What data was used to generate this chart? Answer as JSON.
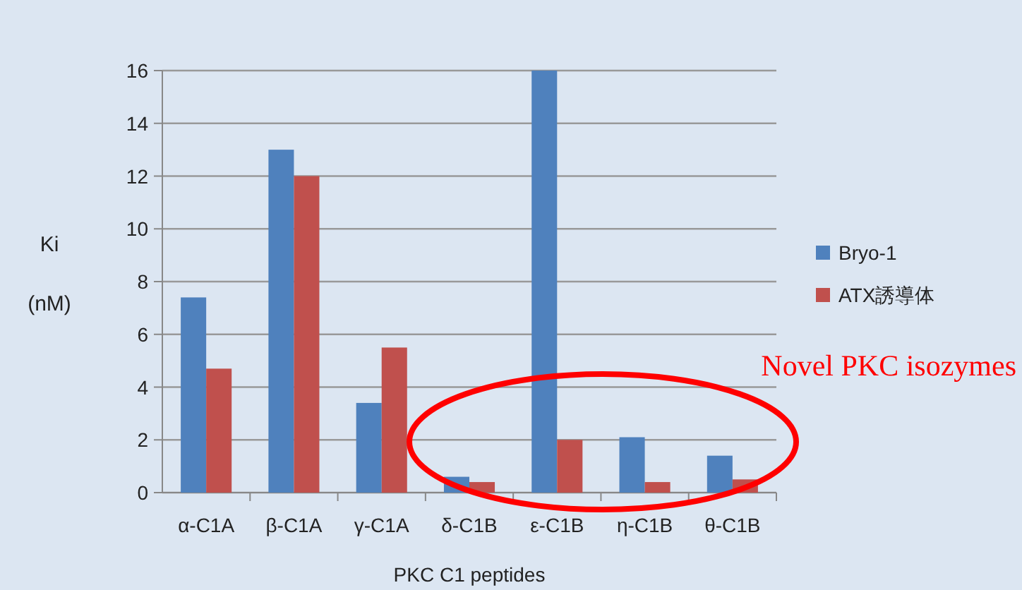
{
  "chart_data": {
    "type": "bar",
    "ylabel": "Ki\n(nM)",
    "xlabel": "PKC C1 peptides",
    "categories": [
      "α-C1A",
      "β-C1A",
      "γ-C1A",
      "δ-C1B",
      "ε-C1B",
      "η-C1B",
      "θ-C1B"
    ],
    "series": [
      {
        "name": "Bryo-1",
        "color": "#4f81bd",
        "values": [
          7.4,
          13,
          3.4,
          0.6,
          16,
          2.1,
          1.4
        ]
      },
      {
        "name": "ATX誘導体",
        "color": "#c0504d",
        "values": [
          4.7,
          12,
          5.5,
          0.4,
          2.0,
          0.4,
          0.5
        ]
      }
    ],
    "ylim": [
      0,
      16
    ],
    "yticks": [
      0,
      2,
      4,
      6,
      8,
      10,
      12,
      14,
      16
    ],
    "grid": "y",
    "legend": "right",
    "annotations": [
      "Novel PKC isozymes"
    ]
  }
}
